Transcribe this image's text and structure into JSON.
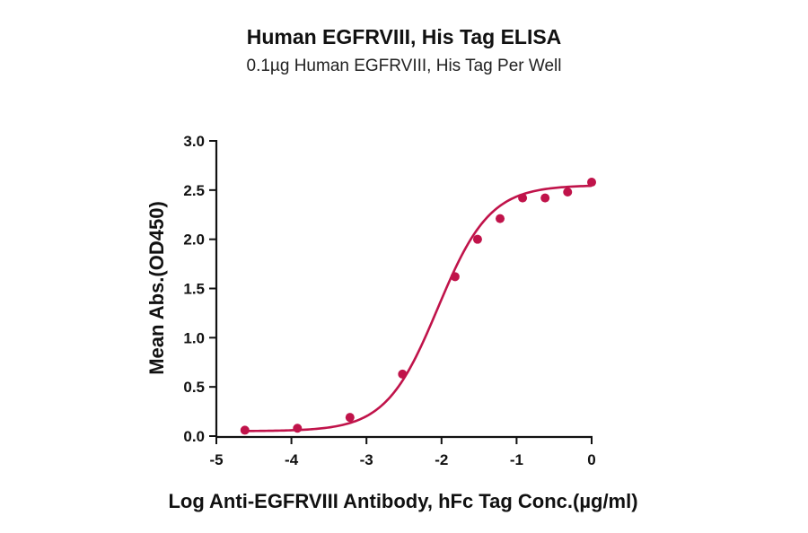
{
  "chart_data": {
    "type": "scatter",
    "title": "Human EGFRVIII, His Tag ELISA",
    "subtitle": "0.1µg Human EGFRVIII, His Tag Per Well",
    "xlabel": "Log Anti-EGFRVIII Antibody, hFc Tag Conc.(µg/ml)",
    "ylabel": "Mean Abs.(OD450)",
    "xlim": [
      -5,
      0
    ],
    "ylim": [
      0,
      3.0
    ],
    "x_ticks": [
      "-5",
      "-4",
      "-3",
      "-2",
      "-1",
      "0"
    ],
    "y_ticks": [
      "0.0",
      "0.5",
      "1.0",
      "1.5",
      "2.0",
      "2.5",
      "3.0"
    ],
    "grid": false,
    "colors": {
      "series": "#c0134a",
      "axis": "#111111"
    },
    "series": [
      {
        "x": [
          -4.62,
          -3.92,
          -3.22,
          -2.52,
          -1.82,
          -1.52,
          -1.22,
          -0.92,
          -0.62,
          -0.32,
          0.0
        ],
        "y": [
          0.06,
          0.08,
          0.19,
          0.63,
          1.62,
          2.0,
          2.21,
          2.42,
          2.42,
          2.48,
          2.58
        ]
      }
    ],
    "fit_curve": {
      "model": "4PL",
      "bottom": 0.05,
      "top": 2.55,
      "log_ec50": -2.05,
      "hill_slope": 1.25
    }
  }
}
